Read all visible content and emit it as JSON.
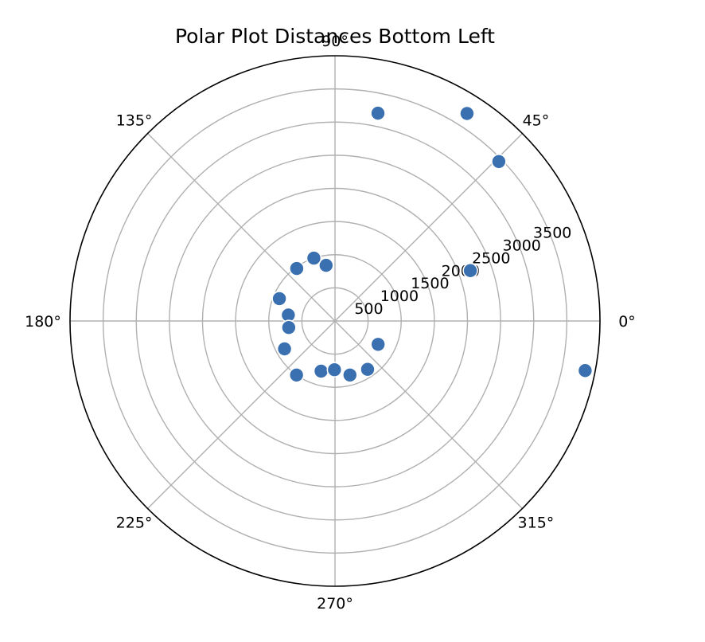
{
  "chart_data": {
    "type": "scatter",
    "projection": "polar",
    "title": "Polar Plot Distances Bottom Left",
    "rlim": [
      0,
      4000
    ],
    "grid": true,
    "marker_color": "#3a6fb0",
    "theta_ticks": [
      {
        "deg": 0,
        "label": "0°"
      },
      {
        "deg": 45,
        "label": "45°"
      },
      {
        "deg": 90,
        "label": "90°"
      },
      {
        "deg": 135,
        "label": "135°"
      },
      {
        "deg": 180,
        "label": "180°"
      },
      {
        "deg": 225,
        "label": "225°"
      },
      {
        "deg": 270,
        "label": "270°"
      },
      {
        "deg": 315,
        "label": "315°"
      }
    ],
    "r_ticks": [
      {
        "value": 500,
        "label": "500"
      },
      {
        "value": 1000,
        "label": "1000"
      },
      {
        "value": 1500,
        "label": "1500"
      },
      {
        "value": 2000,
        "label": "2000"
      },
      {
        "value": 2500,
        "label": "2500"
      },
      {
        "value": 3000,
        "label": "3000"
      },
      {
        "value": 3500,
        "label": "3500"
      }
    ],
    "r_grid_extra": [
      4000
    ],
    "r_label_angle_deg": 22.5,
    "points": [
      {
        "theta_deg": 348.8,
        "r": 3850
      },
      {
        "theta_deg": 57.5,
        "r": 3710
      },
      {
        "theta_deg": 44.2,
        "r": 3450
      },
      {
        "theta_deg": 78.3,
        "r": 3200
      },
      {
        "theta_deg": 20.4,
        "r": 2180
      },
      {
        "theta_deg": 99.1,
        "r": 850
      },
      {
        "theta_deg": 126.1,
        "r": 980
      },
      {
        "theta_deg": 108.6,
        "r": 1000
      },
      {
        "theta_deg": 158.1,
        "r": 905
      },
      {
        "theta_deg": 172.7,
        "r": 710
      },
      {
        "theta_deg": 188.0,
        "r": 705
      },
      {
        "theta_deg": 208.9,
        "r": 870
      },
      {
        "theta_deg": 234.5,
        "r": 1000
      },
      {
        "theta_deg": 254.5,
        "r": 785
      },
      {
        "theta_deg": 269.4,
        "r": 735
      },
      {
        "theta_deg": 285.5,
        "r": 845
      },
      {
        "theta_deg": 304.0,
        "r": 880
      },
      {
        "theta_deg": 331.6,
        "r": 740
      }
    ]
  }
}
